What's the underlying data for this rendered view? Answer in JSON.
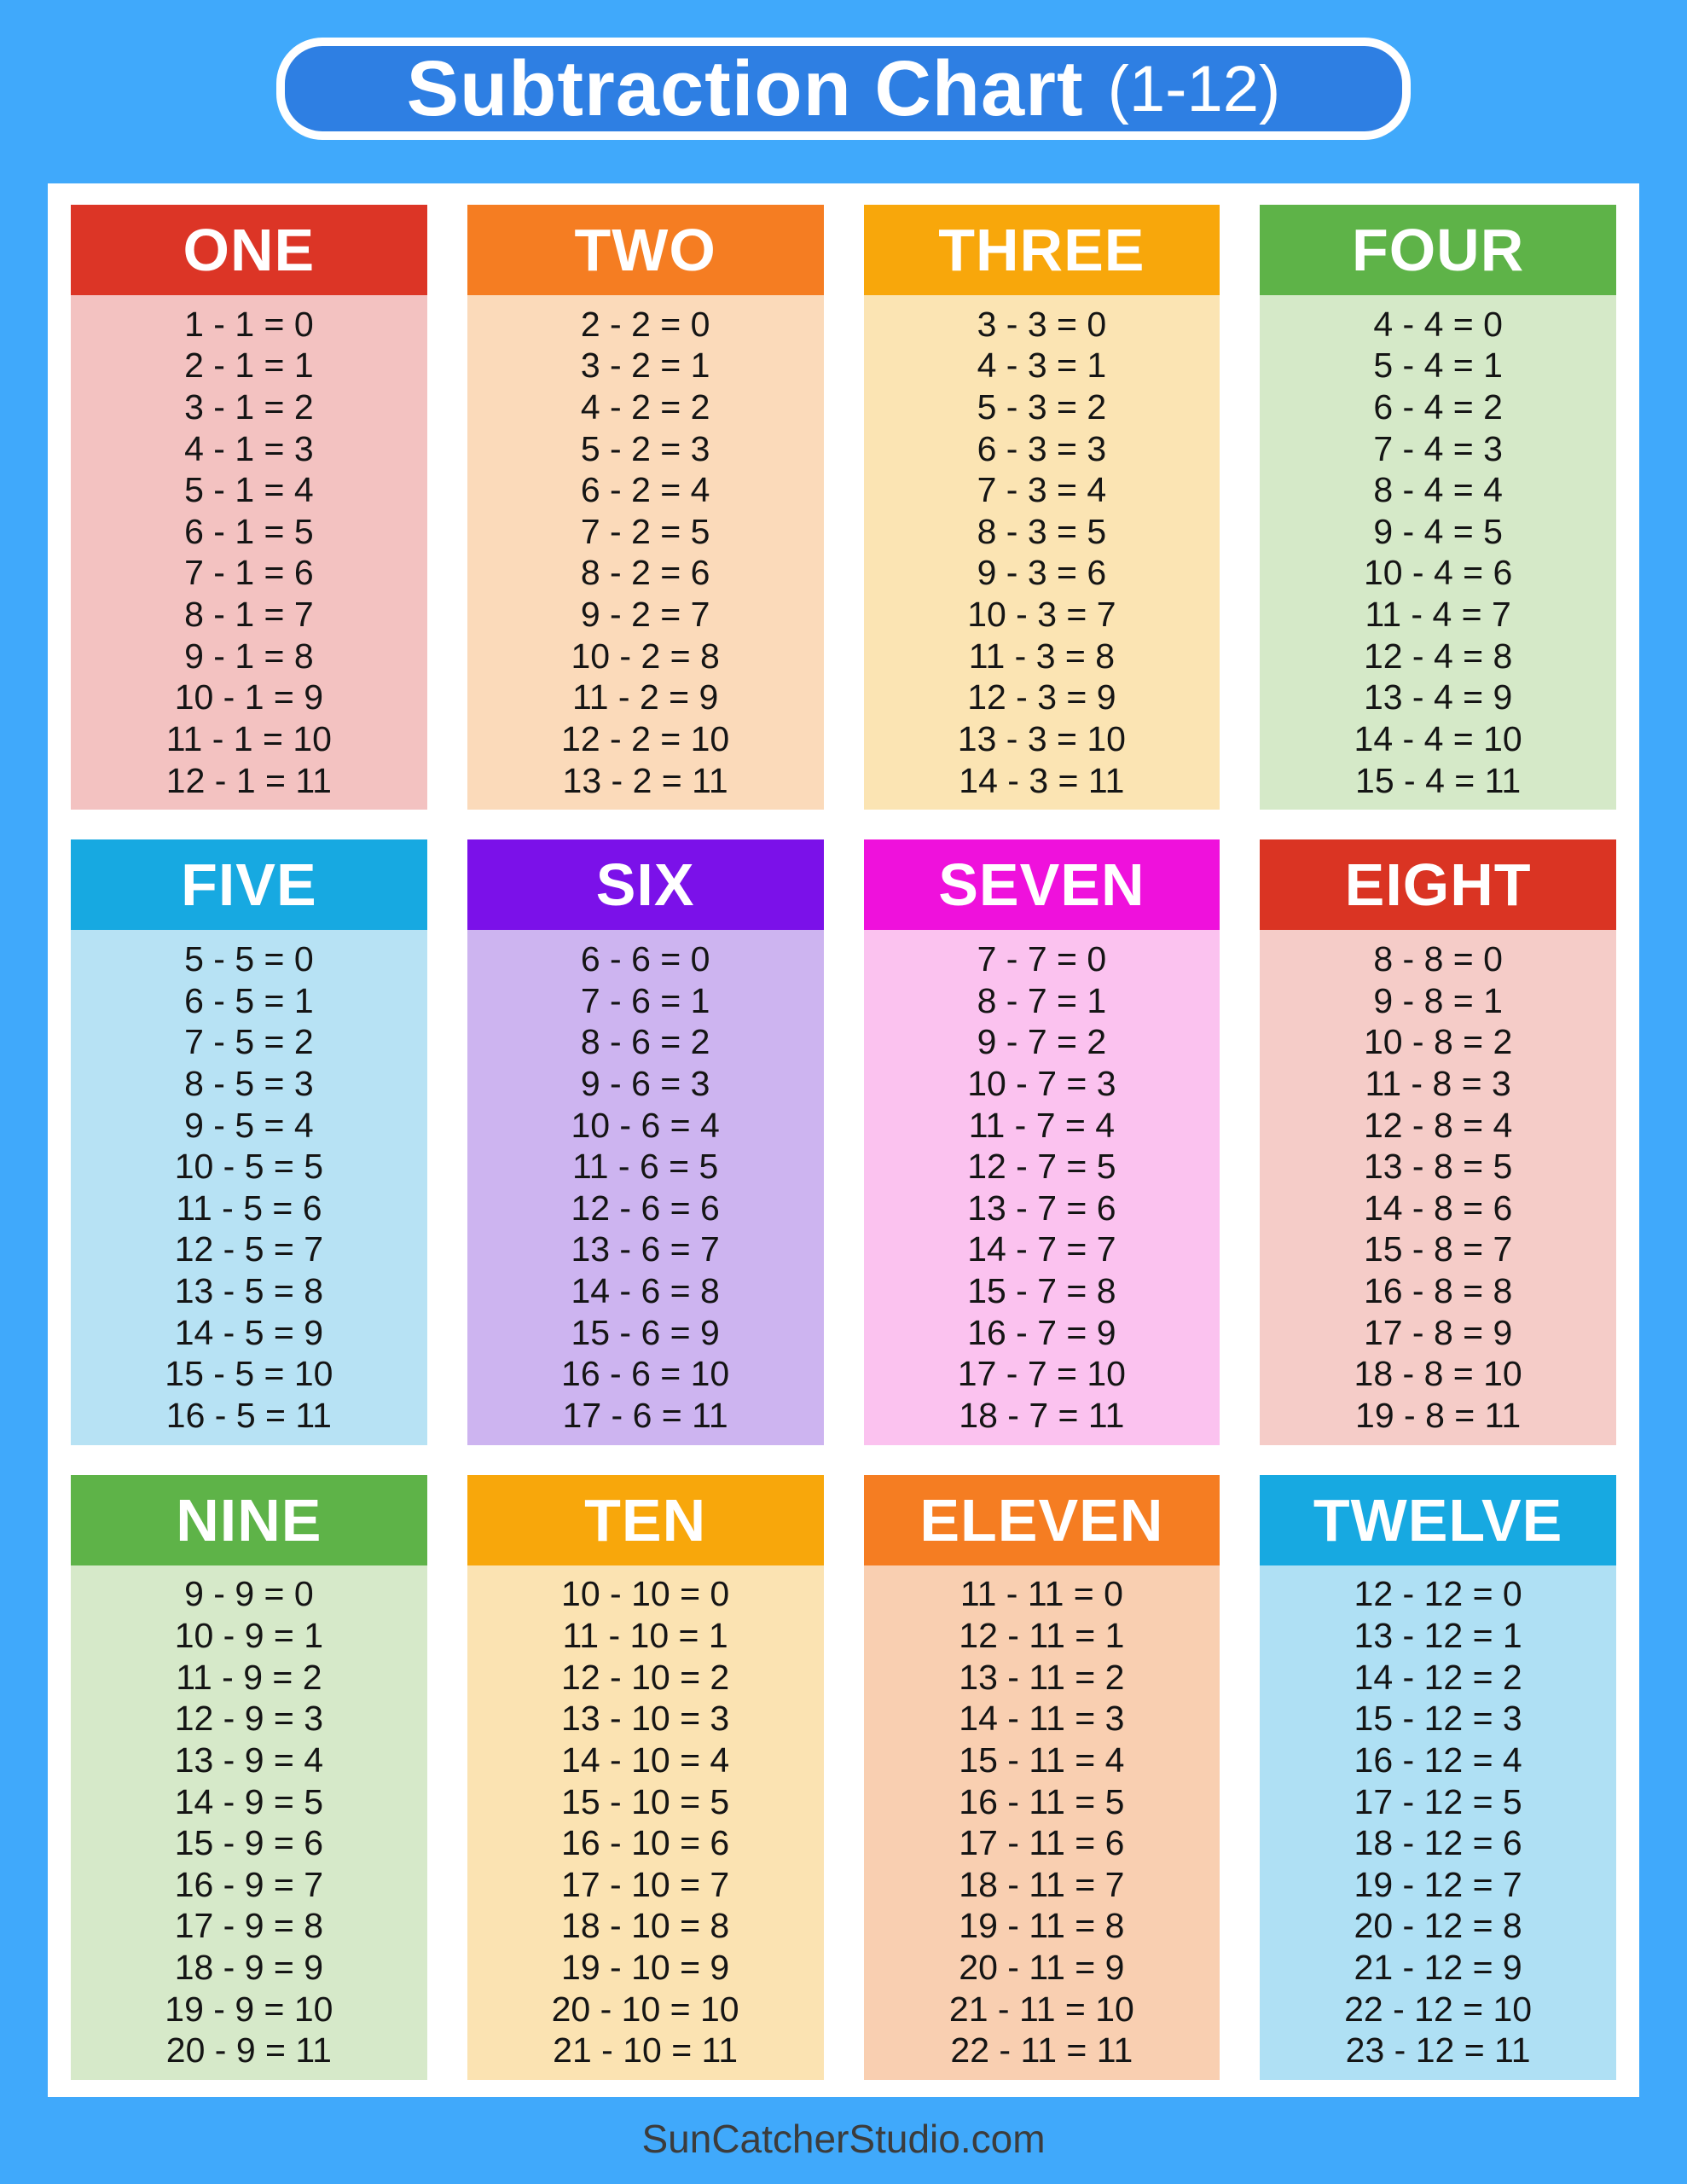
{
  "page": {
    "background_color": "#40A9FB",
    "panel_color": "#FFFFFF"
  },
  "title": {
    "text": "Subtraction Chart",
    "suffix": "(1-12)",
    "box_color": "#2E7FE3",
    "border_color": "#FFFFFF",
    "text_color": "#FFFFFF"
  },
  "equation_text_color": "#151515",
  "footer": {
    "text": "SunCatcherStudio.com",
    "color": "#3C3C3C"
  },
  "cards": [
    {
      "name": "ONE",
      "header_color": "#DC3526",
      "body_color": "#F3C2C1",
      "equations": [
        "1 - 1 = 0",
        "2 - 1 = 1",
        "3 - 1 = 2",
        "4 - 1 = 3",
        "5 - 1 = 4",
        "6 - 1 = 5",
        "7 - 1 = 6",
        "8 - 1 = 7",
        "9 - 1 = 8",
        "10 - 1 = 9",
        "11 - 1 = 10",
        "12 - 1 = 11"
      ]
    },
    {
      "name": "TWO",
      "header_color": "#F57D22",
      "body_color": "#FBDABA",
      "equations": [
        "2 - 2 = 0",
        "3 - 2 = 1",
        "4 - 2 = 2",
        "5 - 2 = 3",
        "6 - 2 = 4",
        "7 - 2 = 5",
        "8 - 2 = 6",
        "9 - 2 = 7",
        "10 - 2 = 8",
        "11 - 2 = 9",
        "12 - 2 = 10",
        "13 - 2 = 11"
      ]
    },
    {
      "name": "THREE",
      "header_color": "#F8A70B",
      "body_color": "#FBE4B3",
      "equations": [
        "3 - 3 = 0",
        "4 - 3 = 1",
        "5 - 3 = 2",
        "6 - 3 = 3",
        "7 - 3 = 4",
        "8 - 3 = 5",
        "9 - 3 = 6",
        "10 - 3 = 7",
        "11 - 3 = 8",
        "12 - 3 = 9",
        "13 - 3 = 10",
        "14 - 3 = 11"
      ]
    },
    {
      "name": "FOUR",
      "header_color": "#5EB348",
      "body_color": "#D5E9C8",
      "equations": [
        "4 - 4 = 0",
        "5 - 4 = 1",
        "6 - 4 = 2",
        "7 - 4 = 3",
        "8 - 4 = 4",
        "9 - 4 = 5",
        "10 - 4 = 6",
        "11 - 4 = 7",
        "12 - 4 = 8",
        "13 - 4 = 9",
        "14 - 4 = 10",
        "15 - 4 = 11"
      ]
    },
    {
      "name": "FIVE",
      "header_color": "#17A9E1",
      "body_color": "#B7E2F4",
      "equations": [
        "5 - 5 = 0",
        "6 - 5 = 1",
        "7 - 5 = 2",
        "8 - 5 = 3",
        "9 - 5 = 4",
        "10 - 5 = 5",
        "11 - 5 = 6",
        "12 - 5 = 7",
        "13 - 5 = 8",
        "14 - 5 = 9",
        "15 - 5 = 10",
        "16 - 5 = 11"
      ]
    },
    {
      "name": "SIX",
      "header_color": "#7B11E9",
      "body_color": "#CDB4F0",
      "equations": [
        "6 - 6 = 0",
        "7 - 6 = 1",
        "8 - 6 = 2",
        "9 - 6 = 3",
        "10 - 6 = 4",
        "11 - 6 = 5",
        "12 - 6 = 6",
        "13 - 6 = 7",
        "14 - 6 = 8",
        "15 - 6 = 9",
        "16 - 6 = 10",
        "17 - 6 = 11"
      ]
    },
    {
      "name": "SEVEN",
      "header_color": "#EF11DC",
      "body_color": "#FBC2EF",
      "equations": [
        "7 - 7 = 0",
        "8 - 7 = 1",
        "9 - 7 = 2",
        "10 - 7 = 3",
        "11 - 7 = 4",
        "12 - 7 = 5",
        "13 - 7 = 6",
        "14 - 7 = 7",
        "15 - 7 = 8",
        "16 - 7 = 9",
        "17 - 7 = 10",
        "18 - 7 = 11"
      ]
    },
    {
      "name": "EIGHT",
      "header_color": "#DA3423",
      "body_color": "#F5CCC8",
      "equations": [
        "8 - 8 = 0",
        "9 - 8 = 1",
        "10 - 8 = 2",
        "11 - 8 = 3",
        "12 - 8 = 4",
        "13 - 8 = 5",
        "14 - 8 = 6",
        "15 - 8 = 7",
        "16 - 8 = 8",
        "17 - 8 = 9",
        "18 - 8 = 10",
        "19 - 8 = 11"
      ]
    },
    {
      "name": "NINE",
      "header_color": "#5EB348",
      "body_color": "#D6E9C9",
      "equations": [
        "9 - 9 = 0",
        "10 - 9 = 1",
        "11 - 9 = 2",
        "12 - 9 = 3",
        "13 - 9 = 4",
        "14 - 9 = 5",
        "15 - 9 = 6",
        "16 - 9 = 7",
        "17 - 9 = 8",
        "18 - 9 = 9",
        "19 - 9 = 10",
        "20 - 9 = 11"
      ]
    },
    {
      "name": "TEN",
      "header_color": "#F8A70B",
      "body_color": "#FBE3B2",
      "equations": [
        "10 - 10 = 0",
        "11 - 10 = 1",
        "12 - 10 = 2",
        "13 - 10 = 3",
        "14 - 10 = 4",
        "15 - 10 = 5",
        "16 - 10 = 6",
        "17 - 10 = 7",
        "18 - 10 = 8",
        "19 - 10 = 9",
        "20 - 10 = 10",
        "21 - 10 = 11"
      ]
    },
    {
      "name": "ELEVEN",
      "header_color": "#F57D22",
      "body_color": "#F9CFB1",
      "equations": [
        "11 - 11 = 0",
        "12 - 11 = 1",
        "13 - 11 = 2",
        "14 - 11 = 3",
        "15 - 11 = 4",
        "16 - 11 = 5",
        "17 - 11 = 6",
        "18 - 11 = 7",
        "19 - 11 = 8",
        "20 - 11 = 9",
        "21 - 11 = 10",
        "22 - 11 = 11"
      ]
    },
    {
      "name": "TWELVE",
      "header_color": "#17A9E1",
      "body_color": "#AFE0F4",
      "equations": [
        "12 - 12 = 0",
        "13 - 12 = 1",
        "14 - 12 = 2",
        "15 - 12 = 3",
        "16 - 12 = 4",
        "17 - 12 = 5",
        "18 - 12 = 6",
        "19 - 12 = 7",
        "20 - 12 = 8",
        "21 - 12 = 9",
        "22 - 12 = 10",
        "23 - 12 = 11"
      ]
    }
  ]
}
